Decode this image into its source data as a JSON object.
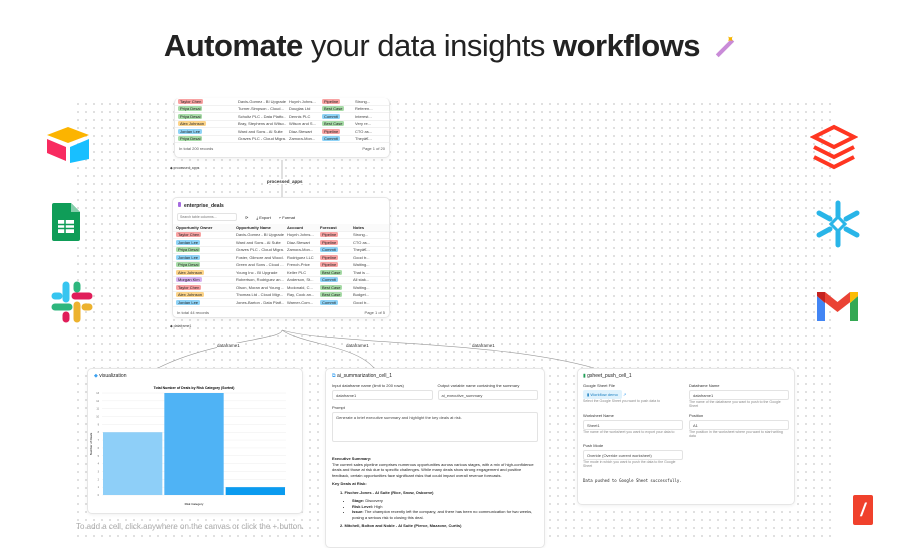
{
  "hero": {
    "bold1": "Automate",
    "normal": " your data insights ",
    "bold2": "workflows",
    "icon": "magic-wand-icon"
  },
  "colors": {
    "red": "#f8a3a3",
    "blue": "#8fd3f7",
    "green": "#a8dca8",
    "yellow": "#fcd48a",
    "purple": "#d8b4f0"
  },
  "top_table": {
    "rows": [
      [
        "Taylor Chen",
        "Davis-Gomez - BI Upgrade",
        "Huynh Johns...",
        "Pipeline",
        "Strong..."
      ],
      [
        "Priya Desai",
        "Turner-Simpson - Cloud...",
        "Douglas Ltd",
        "Best Case",
        "Referen..."
      ],
      [
        "Priya Desai",
        "Schultz PLC - Data Platfo...",
        "Dennis PLC",
        "Commit",
        "Interest..."
      ],
      [
        "Alex Johnson",
        "Bray, Stephens and Wilso...",
        "Wilson and S...",
        "Best Case",
        "Very re..."
      ],
      [
        "Jordan Lee",
        "Ward and Sons - AI Suite",
        "Diaz-Stewart",
        "Pipeline",
        "CTO as..."
      ],
      [
        "Priya Desai",
        "Graves PLC - Cloud Migra...",
        "Zamora-Mon...",
        "Commit",
        "Theyâ€..."
      ]
    ],
    "footer": "In total 200 records",
    "page": "Page 1 of 20",
    "output": "processed_apps"
  },
  "connector_top": "processed_apps",
  "deals": {
    "title": "enterprise_deals",
    "search_placeholder": "Search table columns...",
    "export": "Export",
    "format": "Format",
    "columns": [
      "Opportunity Owner",
      "Opportunity Name",
      "Account",
      "Forecast",
      "Notes"
    ],
    "rows": [
      [
        "Taylor Chen",
        "Davis-Gomez - BI Upgrade",
        "Huynh Johns...",
        "Pipeline",
        "Strong..."
      ],
      [
        "Jordan Lee",
        "Ward and Sons - AI Suite",
        "Diaz-Stewart",
        "Pipeline",
        "CTO as..."
      ],
      [
        "Priya Desai",
        "Graves PLC - Cloud Migra...",
        "Zamora-Mon...",
        "Commit",
        "Theyâ€..."
      ],
      [
        "Jordan Lee",
        "Foster, Gilmore and Wood...",
        "Rodriguez LLC",
        "Pipeline",
        "Good tr..."
      ],
      [
        "Priya Desai",
        "Green and Sons - Cloud ...",
        "French-Price",
        "Pipeline",
        "Waiting..."
      ],
      [
        "Alex Johnson",
        "Young Inc - BI Upgrade",
        "Keller PLC",
        "Best Case",
        "That is ..."
      ],
      [
        "Morgan Kim",
        "Robertson, Rodriguez an...",
        "Anderson, St...",
        "Commit",
        "All stak..."
      ],
      [
        "Taylor Chen",
        "Olson, Moran and Young ...",
        "Mcdonald, C...",
        "Best Case",
        "Waiting..."
      ],
      [
        "Alex Johnson",
        "Thomas Ltd - Cloud Migr...",
        "Ray, Cook an...",
        "Best Case",
        "Budget..."
      ],
      [
        "Jordan Lee",
        "Jones-Barton - Data Platf...",
        "Warner-Com...",
        "Commit",
        "Good tr..."
      ]
    ],
    "footer": "In total 44 records",
    "page": "Page 1 of 5",
    "output": "dataframe1"
  },
  "owner_colors": {
    "Taylor Chen": "red",
    "Jordan Lee": "blue",
    "Priya Desai": "green",
    "Alex Johnson": "yellow",
    "Morgan Kim": "purple"
  },
  "forecast_colors": {
    "Pipeline": "red",
    "Best Case": "green",
    "Commit": "blue"
  },
  "edges": [
    "dataframe1",
    "dataframe1",
    "dataframe1"
  ],
  "viz": {
    "title": "visualization"
  },
  "chart_data": {
    "type": "bar",
    "title": "Total Number of Deals by Risk Category (Sorted)",
    "xlabel": "Risk Category",
    "ylabel": "Number of Deals",
    "values": [
      8,
      13,
      1
    ],
    "ylim": [
      0,
      13
    ],
    "colors": [
      "#8ecff8",
      "#4fb3f5",
      "#0b9bef"
    ],
    "grid": true
  },
  "ai": {
    "title": "ai_summarization_cell_1",
    "input_label": "Input dataframe name (limit to 200 rows)",
    "input_value": "dataframe1",
    "output_label": "Output variable name containing the summary",
    "output_value": "ai_executive_summary",
    "prompt_label": "Prompt",
    "prompt_value": "Generate a brief executive summary and highlight the key deals at risk.",
    "summary_heading": "Executive Summary:",
    "summary": "The current sales pipeline comprises numerous opportunities across various stages, with a mix of high-confidence deals and those at risk due to specific challenges. While many deals show strong engagement and positive feedback, certain opportunities face significant risks that could impact overall revenue forecasts.",
    "risk_heading": "Key Deals at Risk:",
    "deal1": "1. Fischer-Jones - AI Suite (Rice, Snow, Osborne)",
    "stage_k": "Stage:",
    "stage_v": " Discovery",
    "risk_k": "Risk Level:",
    "risk_v": " High",
    "issue_k": "Issue:",
    "issue_v": " The champion recently left the company, and there has been no communication for two weeks, posing a serious risk to closing this deal.",
    "deal2": "2. Mitchell, Bolton and Noble - AI Suite (Pierce, Mazzone, Curtis)"
  },
  "gsheet": {
    "title": "gsheet_push_cell_1",
    "file_label": "Google Sheet File",
    "file_value": "Workflow demo",
    "file_help": "Select the Google Sheet you want to push data to",
    "df_label": "Dataframe Name",
    "df_value": "dataframe1",
    "df_help": "The name of the dataframe you want to push to the Google Sheet",
    "ws_label": "Worksheet Name",
    "ws_value": "Sheet1",
    "ws_help": "The name of the worksheet you want to export your data to",
    "pos_label": "Position",
    "pos_value": "A1",
    "pos_help": "The position in the worksheet where you want to start writing data",
    "mode_label": "Push Mode",
    "mode_value": "Overide (Overide current worksheet)",
    "mode_help": "The mode in which you want to push the data to the Google Sheet",
    "result": "Data pushed to Google Sheet successfully."
  },
  "hint": "To add a cell, click anywhere on the canvas or click the + button.",
  "logos": [
    "airtable-logo",
    "google-sheets-logo",
    "slack-logo",
    "databricks-logo",
    "snowflake-logo",
    "gmail-logo",
    "app-logo"
  ]
}
